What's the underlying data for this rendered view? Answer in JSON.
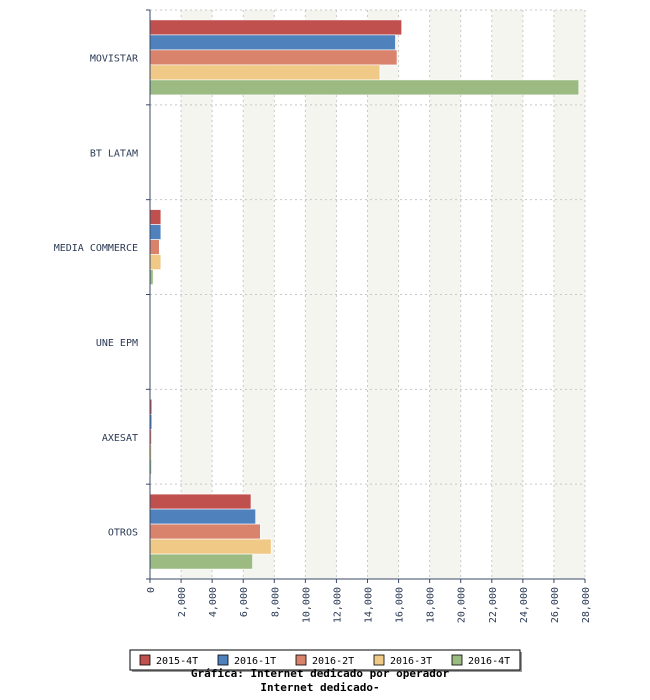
{
  "chart_data": {
    "type": "bar",
    "orientation": "horizontal",
    "categories": [
      "MOVISTAR",
      "BT LATAM",
      "MEDIA COMMERCE",
      "UNE EPM",
      "AXESAT",
      "OTROS"
    ],
    "series": [
      {
        "name": "2015-4T",
        "color": "#c0504d",
        "values": [
          16200,
          50,
          700,
          20,
          120,
          6500
        ]
      },
      {
        "name": "2016-1T",
        "color": "#4f81bd",
        "values": [
          15800,
          50,
          700,
          20,
          120,
          6800
        ]
      },
      {
        "name": "2016-2T",
        "color": "#d9826c",
        "values": [
          15900,
          50,
          600,
          20,
          100,
          7100
        ]
      },
      {
        "name": "2016-3T",
        "color": "#f0c987",
        "values": [
          14800,
          50,
          700,
          20,
          100,
          7800
        ]
      },
      {
        "name": "2016-4T",
        "color": "#9bbb83",
        "values": [
          27600,
          50,
          200,
          20,
          100,
          6600
        ]
      }
    ],
    "xlim": [
      0,
      28000
    ],
    "ticks": [
      "0",
      "2,000",
      "4,000",
      "6,000",
      "8,000",
      "10,000",
      "12,000",
      "14,000",
      "16,000",
      "18,000",
      "20,000",
      "22,000",
      "24,000",
      "26,000",
      "28,000"
    ],
    "grid": true,
    "legend_position": "bottom",
    "title": "Gráfica: Internet dedicado por operador",
    "subtitle": "Internet dedicado-"
  }
}
